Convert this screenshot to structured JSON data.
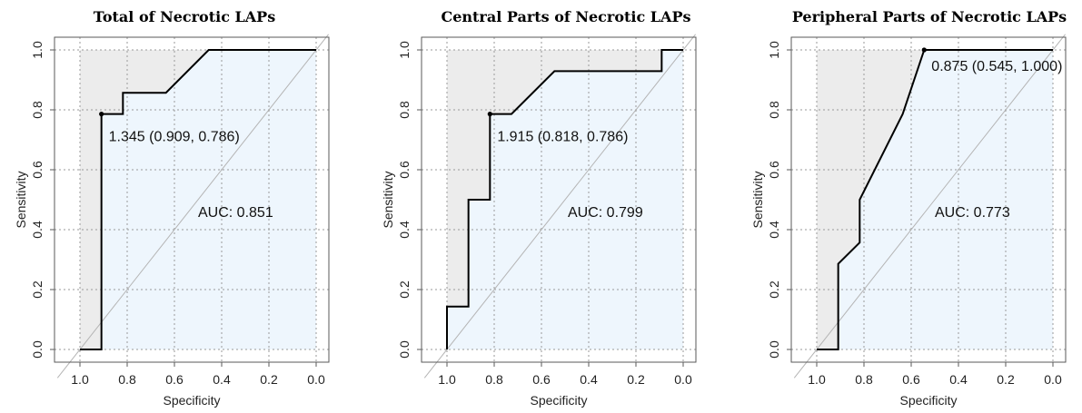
{
  "chart_data": [
    {
      "type": "line",
      "title": "Total of Necrotic LAPs",
      "xlabel": "Specificity",
      "ylabel": "Sensitivity",
      "xlim": [
        1.0,
        0.0
      ],
      "ylim": [
        0.0,
        1.0
      ],
      "x_ticks": [
        "1.0",
        "0.8",
        "0.6",
        "0.4",
        "0.2",
        "0.0"
      ],
      "y_ticks": [
        "0.0",
        "0.2",
        "0.4",
        "0.6",
        "0.8",
        "1.0"
      ],
      "grid": true,
      "series": [
        {
          "x": [
            1.0,
            0.909,
            0.909,
            0.818,
            0.818,
            0.636,
            0.455,
            0.0
          ],
          "y": [
            0.0,
            0.0,
            0.786,
            0.786,
            0.857,
            0.857,
            1.0,
            1.0
          ]
        }
      ],
      "threshold_point": {
        "x": 0.909,
        "y": 0.786,
        "label": "1.345 (0.909, 0.786)"
      },
      "auc_label": "AUC: 0.851"
    },
    {
      "type": "line",
      "title": "Central Parts of Necrotic LAPs",
      "xlabel": "Specificity",
      "ylabel": "Sensitivity",
      "xlim": [
        1.0,
        0.0
      ],
      "ylim": [
        0.0,
        1.0
      ],
      "x_ticks": [
        "1.0",
        "0.8",
        "0.6",
        "0.4",
        "0.2",
        "0.0"
      ],
      "y_ticks": [
        "0.0",
        "0.2",
        "0.4",
        "0.6",
        "0.8",
        "1.0"
      ],
      "grid": true,
      "series": [
        {
          "x": [
            1.0,
            1.0,
            0.909,
            0.909,
            0.818,
            0.818,
            0.727,
            0.545,
            0.091,
            0.091,
            0.0
          ],
          "y": [
            0.0,
            0.143,
            0.143,
            0.5,
            0.5,
            0.786,
            0.786,
            0.929,
            0.929,
            1.0,
            1.0
          ]
        }
      ],
      "threshold_point": {
        "x": 0.818,
        "y": 0.786,
        "label": "1.915 (0.818, 0.786)"
      },
      "auc_label": "AUC: 0.799"
    },
    {
      "type": "line",
      "title": "Peripheral Parts of Necrotic LAPs",
      "xlabel": "Specificity",
      "ylabel": "Sensitivity",
      "xlim": [
        1.0,
        0.0
      ],
      "ylim": [
        0.0,
        1.0
      ],
      "x_ticks": [
        "1.0",
        "0.8",
        "0.6",
        "0.4",
        "0.2",
        "0.0"
      ],
      "y_ticks": [
        "0.0",
        "0.2",
        "0.4",
        "0.6",
        "0.8",
        "1.0"
      ],
      "grid": true,
      "series": [
        {
          "x": [
            1.0,
            0.909,
            0.909,
            0.818,
            0.818,
            0.636,
            0.545,
            0.0
          ],
          "y": [
            0.0,
            0.0,
            0.286,
            0.357,
            0.5,
            0.786,
            1.0,
            1.0
          ]
        }
      ],
      "threshold_point": {
        "x": 0.545,
        "y": 1.0,
        "label": "0.875 (0.545, 1.000)"
      },
      "auc_label": "AUC: 0.773"
    }
  ],
  "colors": {
    "curve": "#000000",
    "auc_fill": "#eef6fd",
    "outer_fill": "#ececec",
    "grid": "#9a9a9a",
    "diagonal": "#b4b4b4",
    "axis": "#5a5a5a"
  }
}
